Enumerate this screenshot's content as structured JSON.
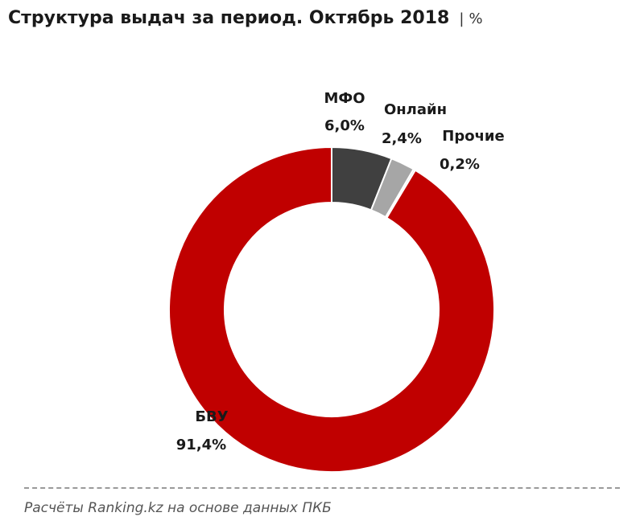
{
  "chart_data": {
    "type": "pie",
    "title": "Структура выдач за период. Октябрь 2018",
    "unit": "%",
    "donut": true,
    "slices": [
      {
        "label": "МФО",
        "value": 6.0,
        "value_text": "6,0%",
        "color": "#404040"
      },
      {
        "label": "Онлайн",
        "value": 2.4,
        "value_text": "2,4%",
        "color": "#a6a6a6"
      },
      {
        "label": "Прочие",
        "value": 0.2,
        "value_text": "0,2%",
        "color": "#d9d9d9"
      },
      {
        "label": "БВУ",
        "value": 91.4,
        "value_text": "91,4%",
        "color": "#c00000"
      }
    ]
  },
  "header": {
    "separator": "|"
  },
  "footer": {
    "source": "Расчёты Ranking.kz на основе данных ПКБ"
  }
}
